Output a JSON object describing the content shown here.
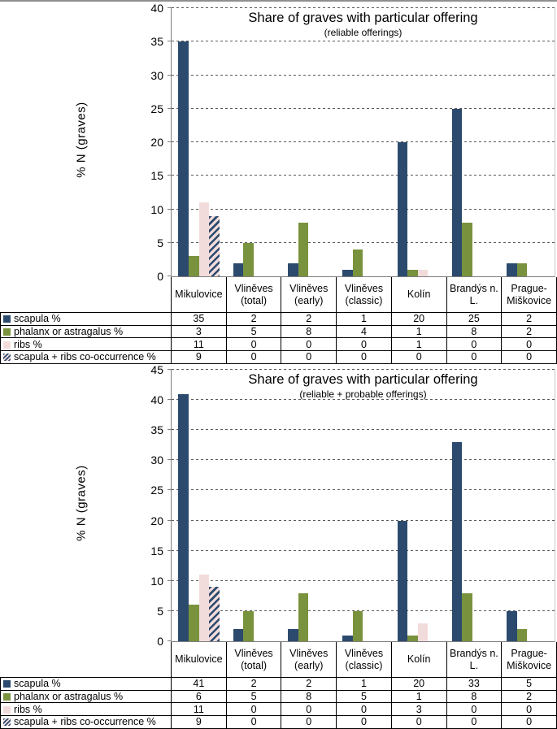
{
  "colors": {
    "scapula": "#2c4a6e",
    "phalanx": "#79923d",
    "ribs": "#f2dcdb",
    "hatch_fg": "#2c4a6e",
    "hatch_bg": "#f2dcdb",
    "gridline": "#595959",
    "axis": "#7f7f7f",
    "table_border": "#000000"
  },
  "chart_data": [
    {
      "type": "bar",
      "title": "Share of graves with particular offering",
      "subtitle": "(reliable offerings)",
      "ylabel": "% N  (graves)",
      "ylim": [
        0,
        40
      ],
      "ytick_step": 5,
      "grid": "horizontal dashed",
      "legend_position": "table rows left of data table",
      "categories": [
        "Mikulovice",
        "Vliněves (total)",
        "Vliněves (early)",
        "Vliněves (classic)",
        "Kolín",
        "Brandýs n. L.",
        "Prague-Miškovice"
      ],
      "series": [
        {
          "name": "scapula %",
          "color_key": "scapula",
          "values": [
            35,
            2,
            2,
            1,
            20,
            25,
            2
          ]
        },
        {
          "name": "phalanx or astragalus %",
          "color_key": "phalanx",
          "values": [
            3,
            5,
            8,
            4,
            1,
            8,
            2
          ]
        },
        {
          "name": "ribs %",
          "color_key": "ribs",
          "values": [
            11,
            0,
            0,
            0,
            1,
            0,
            0
          ]
        },
        {
          "name": "scapula + ribs co-occurrence %",
          "color_key": "scapula_ribs",
          "values": [
            9,
            0,
            0,
            0,
            0,
            0,
            0
          ]
        }
      ]
    },
    {
      "type": "bar",
      "title": "Share of graves with particular offering",
      "subtitle": "(reliable + probable offerings)",
      "ylabel": "% N  (graves)",
      "ylim": [
        0,
        45
      ],
      "ytick_step": 5,
      "grid": "horizontal dashed",
      "legend_position": "table rows left of data table",
      "categories": [
        "Mikulovice",
        "Vliněves (total)",
        "Vliněves (early)",
        "Vliněves (classic)",
        "Kolín",
        "Brandýs n. L.",
        "Prague-Miškovice"
      ],
      "series": [
        {
          "name": "scapula %",
          "color_key": "scapula",
          "values": [
            41,
            2,
            2,
            1,
            20,
            33,
            5
          ]
        },
        {
          "name": "phalanx or astragalus %",
          "color_key": "phalanx",
          "values": [
            6,
            5,
            8,
            5,
            1,
            8,
            2
          ]
        },
        {
          "name": "ribs %",
          "color_key": "ribs",
          "values": [
            11,
            0,
            0,
            0,
            3,
            0,
            0
          ]
        },
        {
          "name": "scapula + ribs co-occurrence %",
          "color_key": "scapula_ribs",
          "values": [
            9,
            0,
            0,
            0,
            0,
            0,
            0
          ]
        }
      ]
    }
  ]
}
